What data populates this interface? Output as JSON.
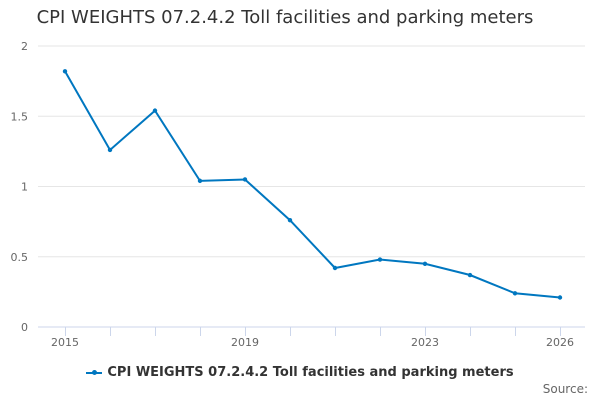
{
  "chart_data": {
    "type": "line",
    "title": "CPI WEIGHTS 07.2.4.2 Toll facilities and parking meters",
    "xlabel": "",
    "ylabel": "",
    "x": [
      2015,
      2016,
      2017,
      2018,
      2019,
      2020,
      2021,
      2022,
      2023,
      2024,
      2025,
      2026
    ],
    "x_tick_labels": [
      "2015",
      "2019",
      "2023",
      "2026"
    ],
    "y_ticks": [
      "0",
      "0.5",
      "1",
      "1.5",
      "2"
    ],
    "ylim": [
      0,
      2
    ],
    "grid": true,
    "legend_position": "bottom",
    "series": [
      {
        "name": "CPI WEIGHTS 07.2.4.2 Toll facilities and parking meters",
        "color": "#0077c0",
        "values": [
          1.82,
          1.26,
          1.54,
          1.04,
          1.05,
          0.76,
          0.42,
          0.48,
          0.45,
          0.37,
          0.24,
          0.21
        ]
      }
    ]
  },
  "source_label": "Source:"
}
